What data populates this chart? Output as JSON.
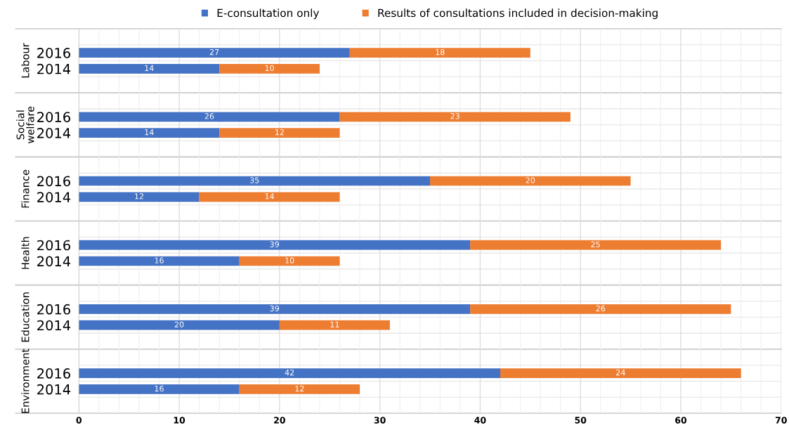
{
  "chart_data": {
    "type": "bar",
    "orientation": "horizontal",
    "stacked": true,
    "categories": [
      null,
      "2016",
      "2014",
      null,
      null,
      "2016",
      "2014",
      null,
      null,
      "2016",
      "2014",
      null,
      null,
      "2016",
      "2014",
      null,
      null,
      "2016",
      "2014",
      null,
      null,
      "2016",
      "2014",
      null
    ],
    "series": [
      {
        "name": "E-consultation only",
        "color": "#4472c4",
        "values": [
          null,
          27,
          14,
          null,
          null,
          26,
          14,
          null,
          null,
          35,
          12,
          null,
          null,
          39,
          16,
          null,
          null,
          39,
          20,
          null,
          null,
          42,
          16,
          null
        ]
      },
      {
        "name": "Results of consultations included in decision-making",
        "color": "#ed7d31",
        "values": [
          null,
          18,
          10,
          null,
          null,
          23,
          12,
          null,
          null,
          20,
          14,
          null,
          null,
          25,
          10,
          null,
          null,
          26,
          11,
          null,
          null,
          24,
          12,
          null
        ]
      }
    ],
    "annotations": [
      "Labour",
      "Social\nwelfare",
      "Finance",
      "Health",
      "Education",
      "Environment"
    ],
    "xlim": [
      0,
      70
    ],
    "xticks": [
      0,
      10,
      20,
      30,
      40,
      50,
      60,
      70
    ],
    "grid": true,
    "legend": "top",
    "data_labels": true
  }
}
